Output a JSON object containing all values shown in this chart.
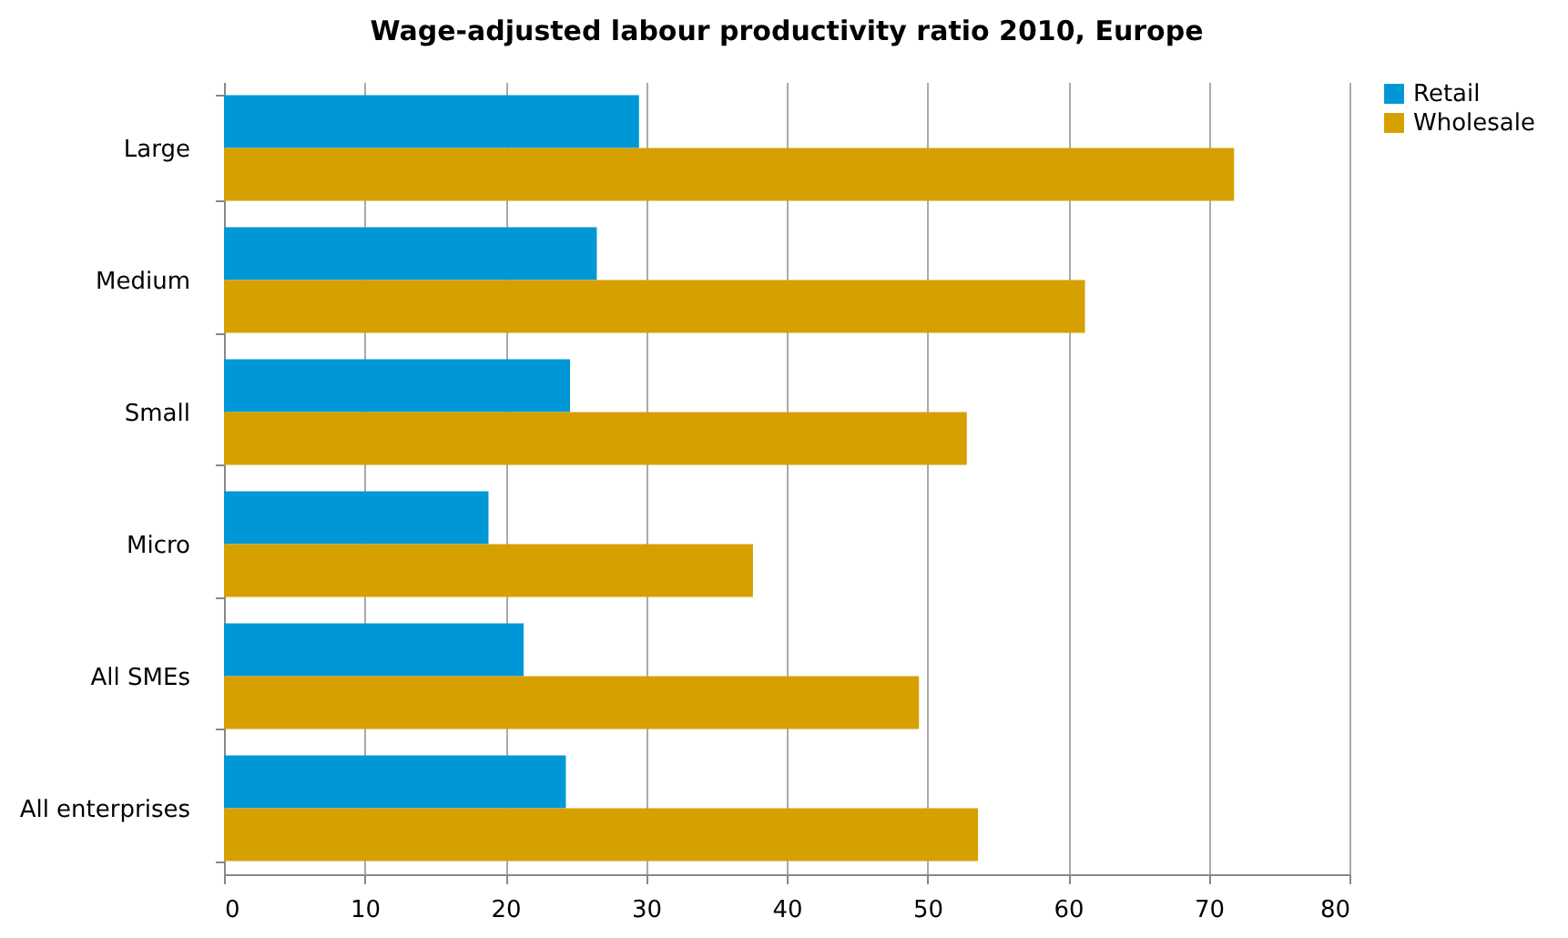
{
  "chart_data": {
    "type": "bar",
    "orientation": "horizontal",
    "title": "Wage-adjusted labour productivity ratio 2010, Europe",
    "categories": [
      "Large",
      "Medium",
      "Small",
      "Micro",
      "All SMEs",
      "All enterprises"
    ],
    "series": [
      {
        "name": "Retail",
        "color": "#0097d6",
        "values": [
          29.5,
          26.5,
          24.6,
          18.8,
          21.3,
          24.3
        ]
      },
      {
        "name": "Wholesale",
        "color": "#d6a000",
        "values": [
          71.8,
          61.2,
          52.8,
          37.6,
          49.4,
          53.6
        ]
      }
    ],
    "xlim": [
      0,
      80
    ],
    "xticks": [
      0,
      10,
      20,
      30,
      40,
      50,
      60,
      70,
      80
    ],
    "grid": "x",
    "legend": "right"
  }
}
